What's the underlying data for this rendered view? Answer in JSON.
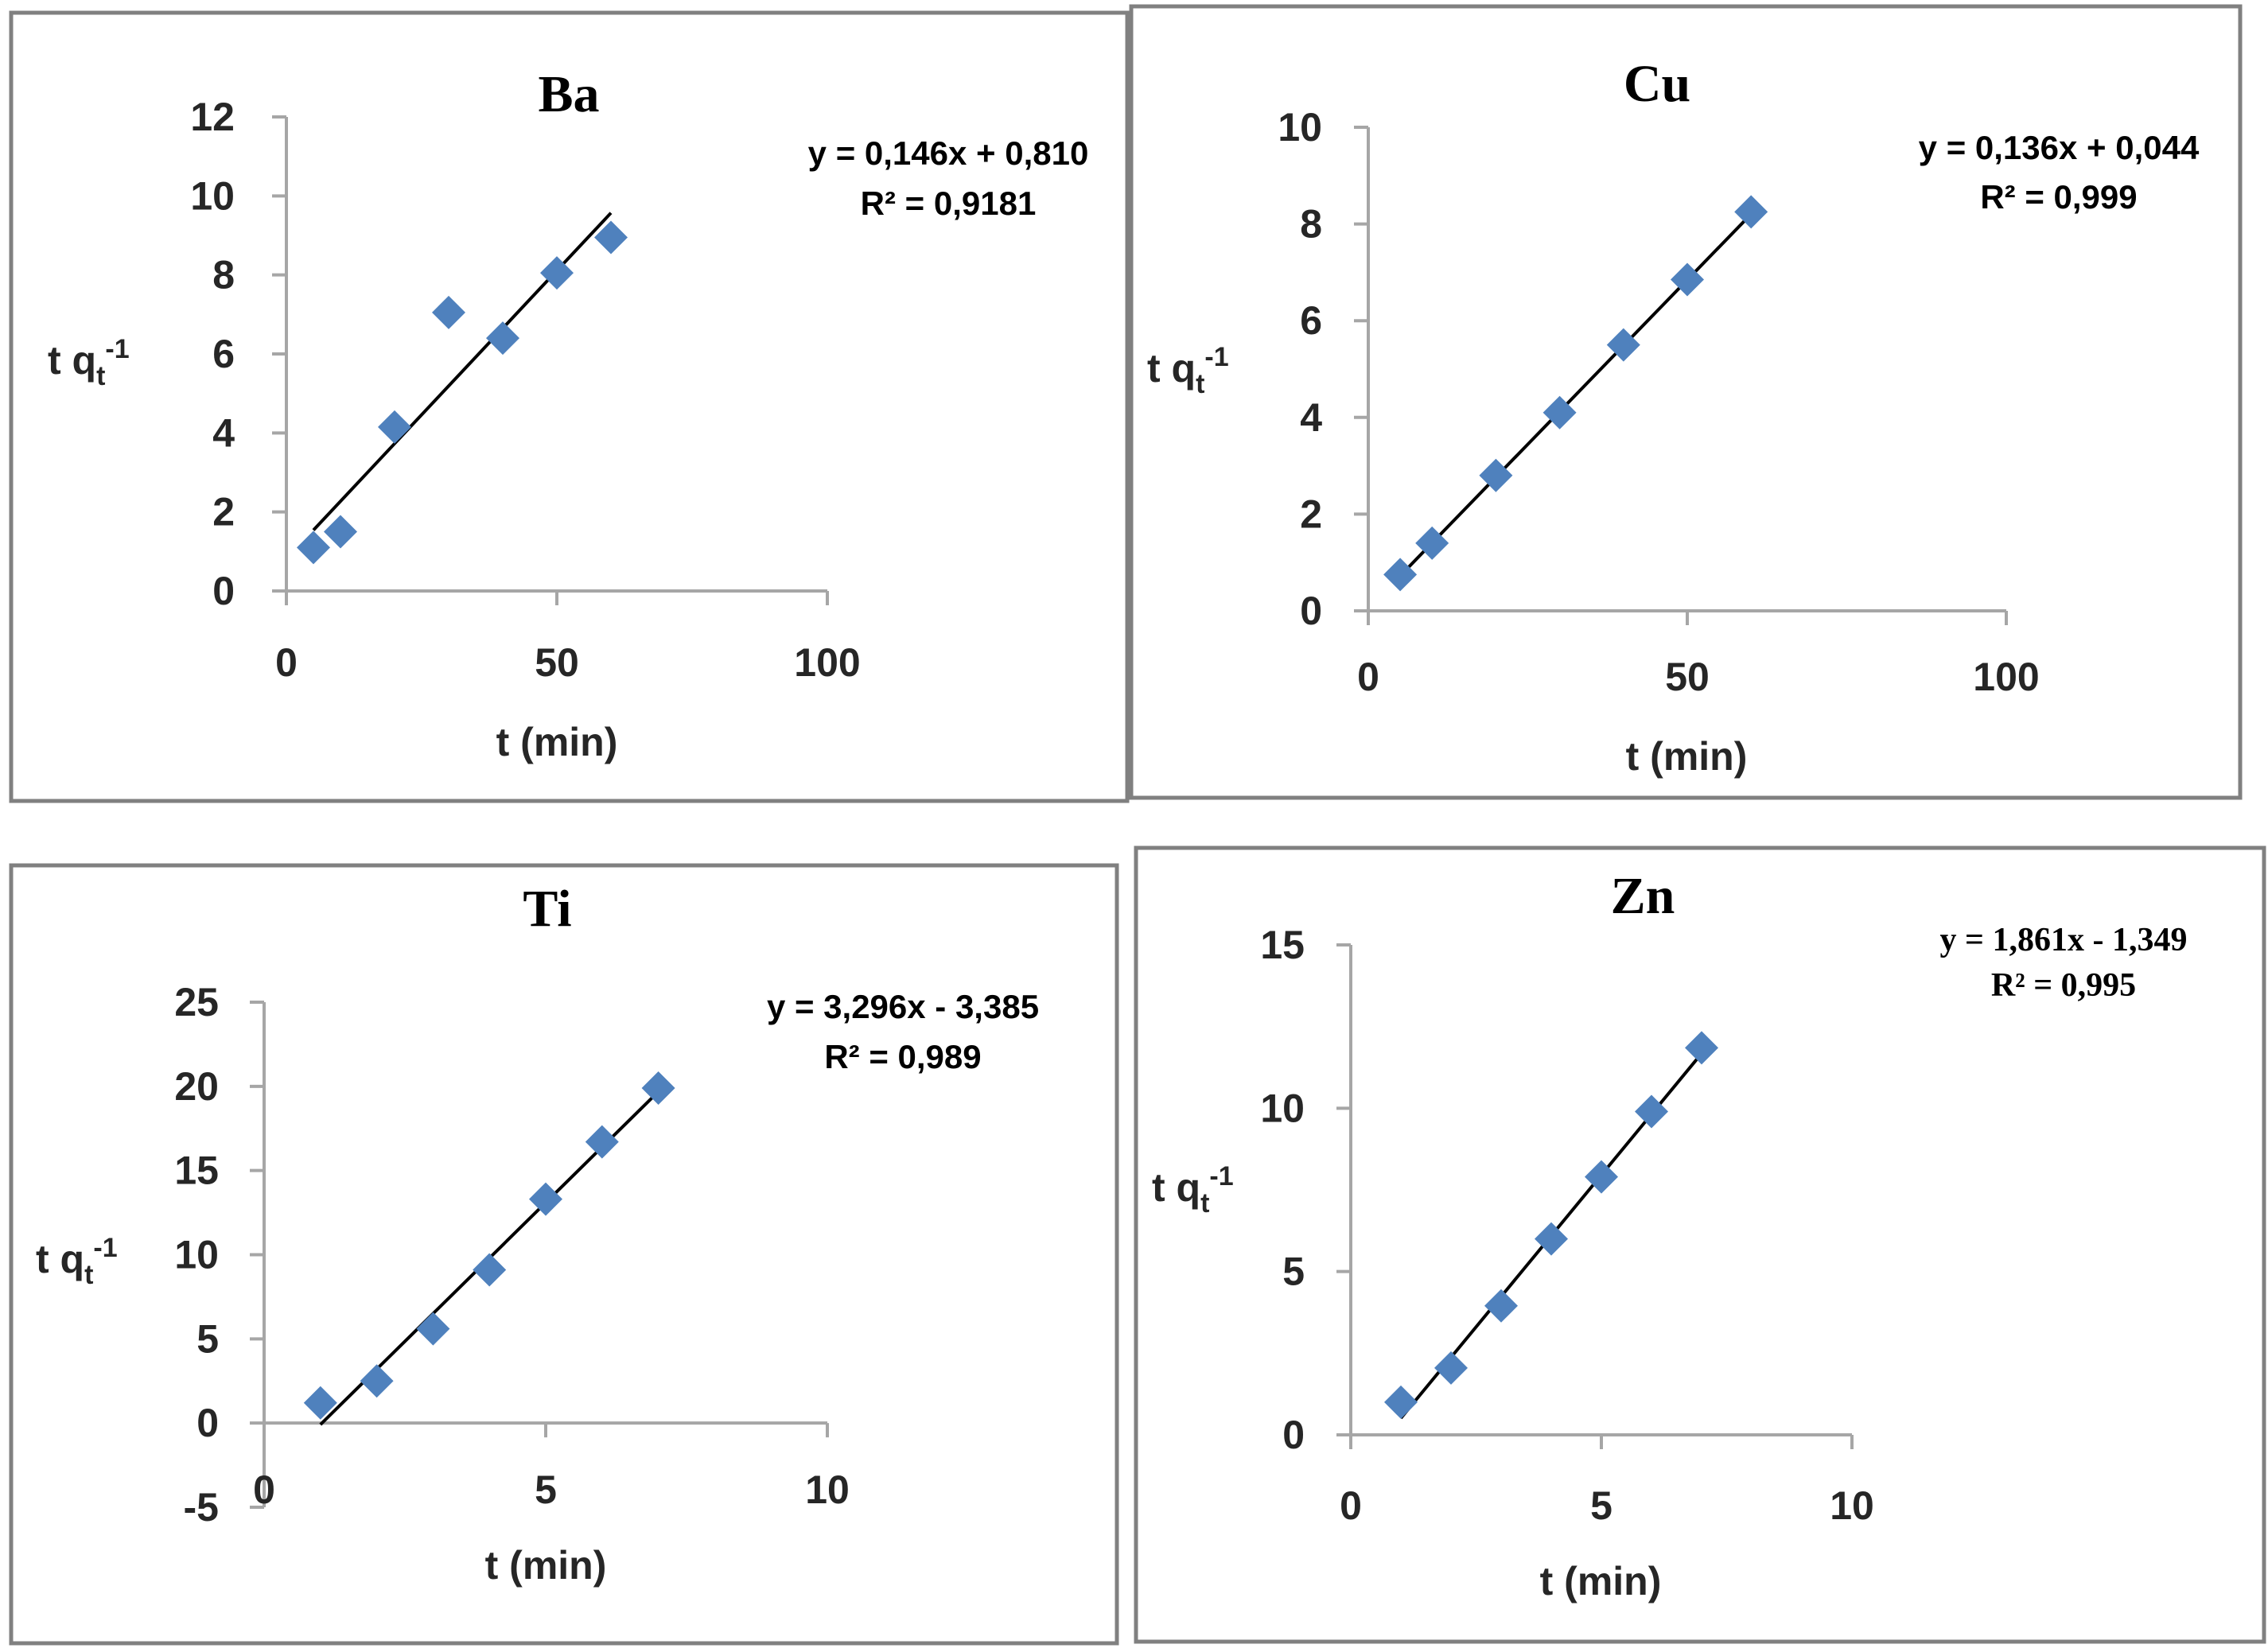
{
  "colors": {
    "frame": "#808080",
    "marker": "#4F81BD",
    "trendline": "#000000",
    "axis": "#A6A6A6",
    "text": "#262626"
  },
  "chart_data": [
    {
      "type": "scatter",
      "title": "Ba",
      "xlabel": "t (min)",
      "ylabel": "t q_t^-1",
      "ylabel_parts": {
        "main": "t q",
        "sub": "t",
        "sup": "-1"
      },
      "xlim": [
        0,
        100
      ],
      "ylim": [
        0,
        12
      ],
      "xticks": [
        0,
        50,
        100
      ],
      "yticks": [
        0,
        2,
        4,
        6,
        8,
        10,
        12
      ],
      "x": [
        5,
        10,
        20,
        30,
        40,
        50,
        60
      ],
      "y": [
        1.1,
        1.5,
        4.15,
        7.05,
        6.4,
        8.05,
        8.95
      ],
      "trendline": {
        "slope": 0.146,
        "intercept": 0.81,
        "x_range": [
          5,
          60
        ]
      },
      "equation": "y = 0,146x + 0,810",
      "r2_label": "R² = 0,9181",
      "title_font": "serif",
      "equation_font": "sans"
    },
    {
      "type": "scatter",
      "title": "Cu",
      "xlabel": "t (min)",
      "ylabel": "t q_t^-1",
      "ylabel_parts": {
        "main": "t q",
        "sub": "t",
        "sup": "-1"
      },
      "xlim": [
        0,
        100
      ],
      "ylim": [
        0,
        10
      ],
      "xticks": [
        0,
        50,
        100
      ],
      "yticks": [
        0,
        2,
        4,
        6,
        8,
        10
      ],
      "x": [
        5,
        10,
        20,
        30,
        40,
        50,
        60
      ],
      "y": [
        0.75,
        1.4,
        2.8,
        4.1,
        5.5,
        6.85,
        8.25
      ],
      "trendline": {
        "slope": 0.136,
        "intercept": 0.044,
        "x_range": [
          5,
          60
        ]
      },
      "equation": "y = 0,136x + 0,044",
      "r2_label": "R² = 0,999",
      "title_font": "serif",
      "equation_font": "sans"
    },
    {
      "type": "scatter",
      "title": "Ti",
      "xlabel": "t (min)",
      "ylabel": "t q_t^-1",
      "ylabel_parts": {
        "main": "t q",
        "sub": "t",
        "sup": "-1"
      },
      "xlim": [
        0,
        10
      ],
      "ylim": [
        -5,
        25
      ],
      "xticks": [
        0,
        5,
        10
      ],
      "yticks": [
        -5,
        0,
        5,
        10,
        15,
        20,
        25
      ],
      "x": [
        1,
        2,
        3,
        4,
        5,
        6,
        7
      ],
      "y": [
        1.2,
        2.5,
        5.6,
        9.1,
        13.3,
        16.7,
        19.9
      ],
      "trendline": {
        "slope": 3.296,
        "intercept": -3.385,
        "x_range": [
          1,
          7
        ]
      },
      "equation": "y = 3,296x - 3,385",
      "r2_label": "R² = 0,989",
      "title_font": "serif",
      "equation_font": "sans"
    },
    {
      "type": "scatter",
      "title": "Zn",
      "xlabel": "t (min)",
      "ylabel": "t q_t^-1",
      "ylabel_parts": {
        "main": "t q",
        "sub": "t",
        "sup": "-1"
      },
      "xlim": [
        0,
        10
      ],
      "ylim": [
        0,
        15
      ],
      "xticks": [
        0,
        5,
        10
      ],
      "yticks": [
        0,
        5,
        10,
        15
      ],
      "x": [
        1,
        2,
        3,
        4,
        5,
        6,
        7
      ],
      "y": [
        1.0,
        2.05,
        3.95,
        6.0,
        7.9,
        9.9,
        11.85
      ],
      "trendline": {
        "slope": 1.861,
        "intercept": -1.349,
        "x_range": [
          1,
          7
        ]
      },
      "equation": "y = 1,861x - 1,349",
      "r2_label": "R² = 0,995",
      "title_font": "serif",
      "equation_font": "serif"
    }
  ]
}
